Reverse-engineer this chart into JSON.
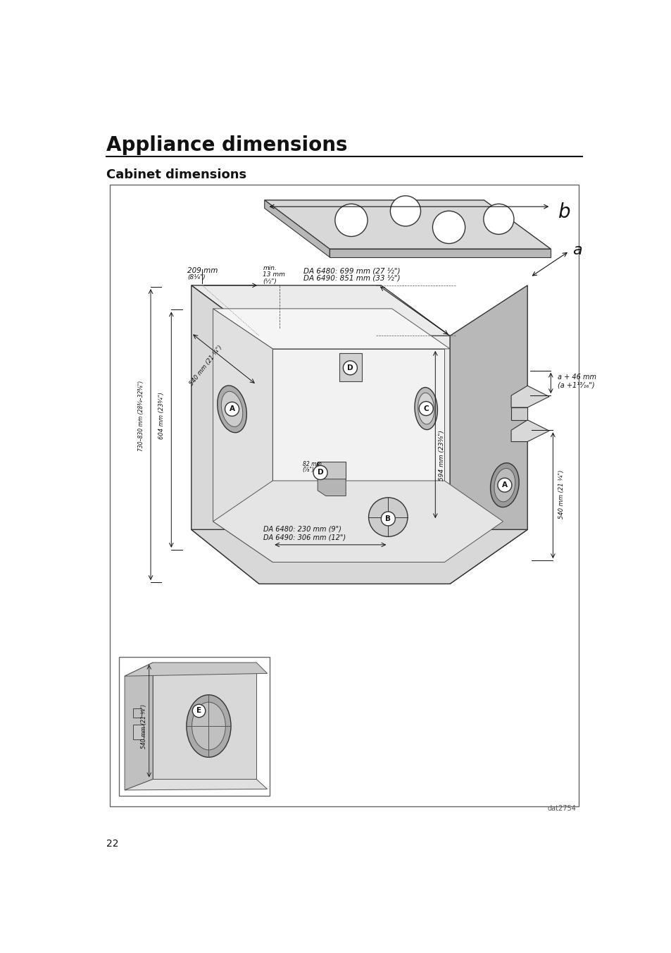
{
  "title": "Appliance dimensions",
  "subtitle": "Cabinet dimensions",
  "page_number": "22",
  "figure_code": "dat2754",
  "bg_color": "#ffffff",
  "title_fontsize": 20,
  "subtitle_fontsize": 13
}
